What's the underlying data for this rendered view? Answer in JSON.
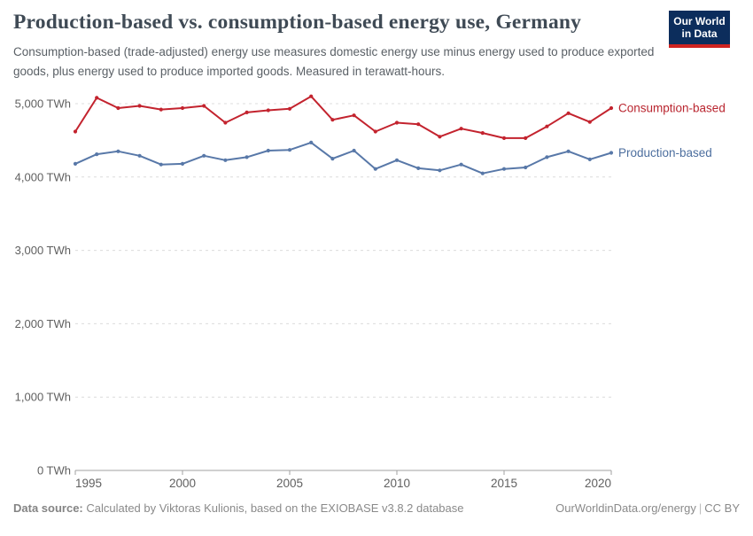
{
  "header": {
    "title": "Production-based vs. consumption-based energy use, Germany",
    "subtitle": "Consumption-based (trade-adjusted) energy use measures domestic energy use minus energy used to produce exported goods, plus energy used to produce imported goods. Measured in terawatt-hours.",
    "logo": {
      "line1": "Our World",
      "line2": "in Data"
    }
  },
  "chart_data": {
    "type": "line",
    "title": "Production-based vs. consumption-based energy use, Germany",
    "xlabel": "",
    "ylabel": "TWh",
    "x": [
      1995,
      1996,
      1997,
      1998,
      1999,
      2000,
      2001,
      2002,
      2003,
      2004,
      2005,
      2006,
      2007,
      2008,
      2009,
      2010,
      2011,
      2012,
      2013,
      2014,
      2015,
      2016,
      2017,
      2018,
      2019,
      2020
    ],
    "series": [
      {
        "name": "Consumption-based",
        "color": "#c3232e",
        "label_color": "#b9252f",
        "values": [
          4620,
          5080,
          4940,
          4970,
          4920,
          4940,
          4970,
          4740,
          4880,
          4910,
          4930,
          5100,
          4780,
          4840,
          4620,
          4740,
          4720,
          4550,
          4660,
          4600,
          4530,
          4530,
          4690,
          4870,
          4750,
          4940
        ]
      },
      {
        "name": "Production-based",
        "color": "#5878a8",
        "label_color": "#4c6e9e",
        "values": [
          4180,
          4310,
          4350,
          4290,
          4170,
          4180,
          4290,
          4230,
          4270,
          4360,
          4370,
          4470,
          4250,
          4360,
          4110,
          4230,
          4120,
          4090,
          4170,
          4050,
          4110,
          4130,
          4270,
          4350,
          4240,
          4330
        ]
      }
    ],
    "x_ticks": [
      1995,
      2000,
      2005,
      2010,
      2015,
      2020
    ],
    "y_ticks": [
      {
        "value": 0,
        "label": "0 TWh"
      },
      {
        "value": 1000,
        "label": "1,000 TWh"
      },
      {
        "value": 2000,
        "label": "2,000 TWh"
      },
      {
        "value": 3000,
        "label": "3,000 TWh"
      },
      {
        "value": 4000,
        "label": "4,000 TWh"
      },
      {
        "value": 5000,
        "label": "5,000 TWh"
      }
    ],
    "xlim": [
      1995,
      2020
    ],
    "ylim": [
      0,
      5000
    ],
    "grid": "horizontal-dashed",
    "legend_position": "end-of-line",
    "colors": {
      "grid": "#dcdcdc",
      "axis": "#a2a2a2",
      "tick_text": "#606060"
    }
  },
  "footer": {
    "source_label": "Data source:",
    "source_text": " Calculated by Viktoras Kulionis, based on the EXIOBASE v3.8.2 database",
    "link_text": "OurWorldinData.org/energy",
    "separator": "|",
    "license": "CC BY"
  }
}
